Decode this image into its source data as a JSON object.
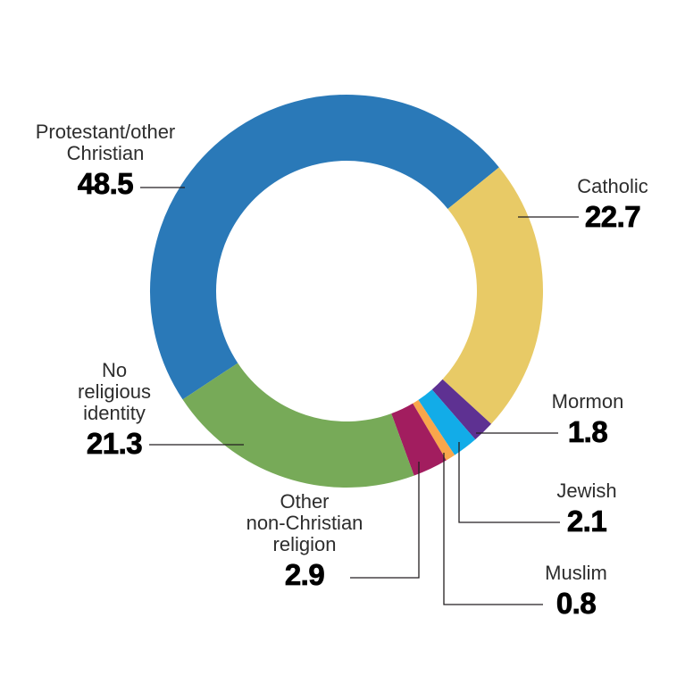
{
  "page": {
    "background": "#ffffff"
  },
  "chart_data": {
    "type": "pie",
    "subtype": "donut",
    "title": "",
    "legend": "none",
    "segments": [
      {
        "label": "Protestant/other\nChristian",
        "value": 48.5,
        "color": "#2a79b8"
      },
      {
        "label": "Catholic",
        "value": 22.7,
        "color": "#e8ca66"
      },
      {
        "label": "Mormon",
        "value": 1.8,
        "color": "#5e3192"
      },
      {
        "label": "Jewish",
        "value": 2.1,
        "color": "#12ace8"
      },
      {
        "label": "Muslim",
        "value": 0.8,
        "color": "#f9a64b"
      },
      {
        "label": "Other\nnon-Christian\nreligion",
        "value": 2.9,
        "color": "#a21d5f"
      },
      {
        "label": "No\nreligious\nidentity",
        "value": 21.3,
        "color": "#77aa58"
      }
    ],
    "styles": {
      "leader_line_color": "#231f20",
      "label_text_color": "#2d2d2d",
      "value_text_color": "#000000"
    },
    "layout": {
      "start_angle_deg": 236.5,
      "direction": "clockwise",
      "center": [
        388,
        326
      ],
      "outer_radius": 220,
      "inner_radius": 146
    }
  }
}
